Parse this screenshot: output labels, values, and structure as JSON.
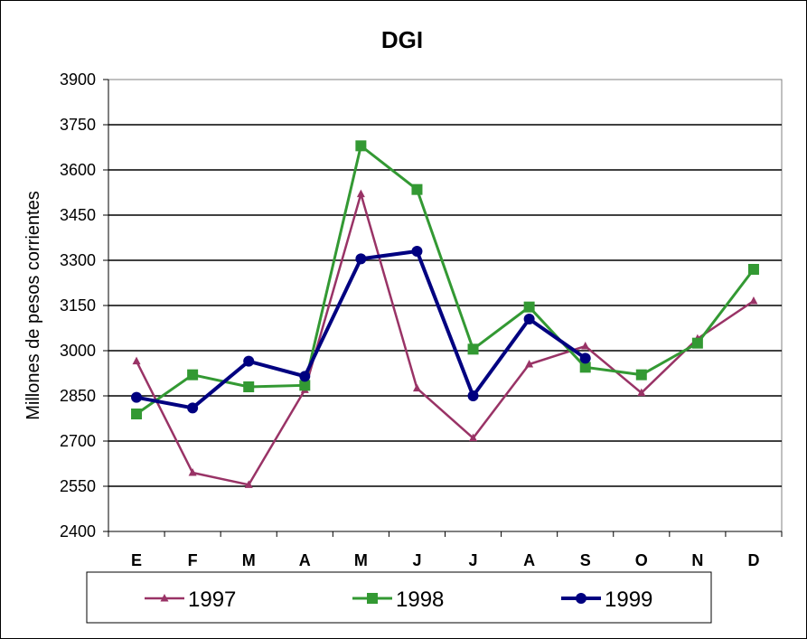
{
  "chart_data": {
    "type": "line",
    "title": "DGI",
    "xlabel": "",
    "ylabel": "Millones de pesos corrientes",
    "categories": [
      "E",
      "F",
      "M",
      "A",
      "M",
      "J",
      "J",
      "A",
      "S",
      "O",
      "N",
      "D"
    ],
    "ylim": [
      2400,
      3900
    ],
    "yticks": [
      2400,
      2550,
      2700,
      2850,
      3000,
      3150,
      3300,
      3450,
      3600,
      3750,
      3900
    ],
    "grid": true,
    "legend": "bottom",
    "series": [
      {
        "name": "1997",
        "color": "#993366",
        "marker": "triangle",
        "values": [
          2965,
          2595,
          2555,
          2870,
          3520,
          2875,
          2710,
          2955,
          3015,
          2860,
          3040,
          3165
        ]
      },
      {
        "name": "1998",
        "color": "#339933",
        "marker": "square",
        "values": [
          2790,
          2920,
          2880,
          2885,
          3680,
          3535,
          3005,
          3145,
          2945,
          2920,
          3025,
          3270
        ]
      },
      {
        "name": "1999",
        "color": "#000080",
        "marker": "circle",
        "values": [
          2845,
          2810,
          2965,
          2915,
          3305,
          3330,
          2850,
          3105,
          2975,
          null,
          null,
          null
        ]
      }
    ]
  }
}
